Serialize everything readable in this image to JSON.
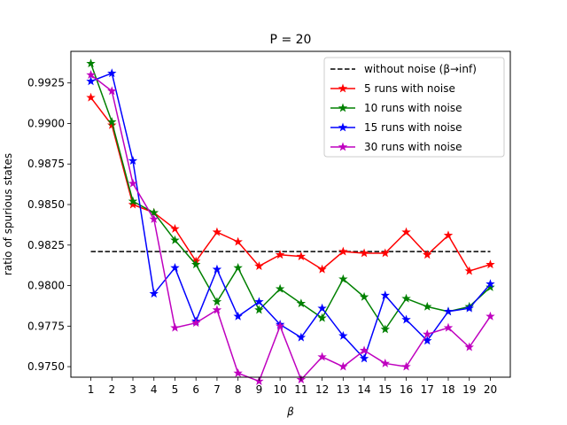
{
  "chart_data": {
    "type": "line",
    "title": "P = 20",
    "xlabel": "β",
    "ylabel": "ratio of spurious states",
    "x": [
      1,
      2,
      3,
      4,
      5,
      6,
      7,
      8,
      9,
      10,
      11,
      12,
      13,
      14,
      15,
      16,
      17,
      18,
      19,
      20
    ],
    "xticks": [
      "1",
      "2",
      "3",
      "4",
      "5",
      "6",
      "7",
      "8",
      "9",
      "10",
      "11",
      "12",
      "13",
      "14",
      "15",
      "16",
      "17",
      "18",
      "19",
      "20"
    ],
    "yticks": [
      "0.9750",
      "0.9775",
      "0.9800",
      "0.9825",
      "0.9850",
      "0.9875",
      "0.9900",
      "0.9925"
    ],
    "ylim": [
      0.97435,
      0.99445
    ],
    "xlim": [
      0.05,
      20.95
    ],
    "grid": false,
    "legend_position": "top-right",
    "reference_line": {
      "name": "without noise (β→inf)",
      "value": 0.9821,
      "color": "#000000",
      "style": "dashed"
    },
    "series": [
      {
        "name": "5 runs with noise",
        "color": "#ff0000",
        "values": [
          0.9916,
          0.9899,
          0.985,
          0.9845,
          0.9835,
          0.9815,
          0.9833,
          0.9827,
          0.9812,
          0.9819,
          0.9818,
          0.981,
          0.9821,
          0.982,
          0.982,
          0.9833,
          0.9819,
          0.9831,
          0.9809,
          0.9813
        ]
      },
      {
        "name": "10 runs with noise",
        "color": "#008000",
        "values": [
          0.9937,
          0.9901,
          0.9852,
          0.9845,
          0.9828,
          0.9813,
          0.979,
          0.9811,
          0.9785,
          0.9798,
          0.9789,
          0.978,
          0.9804,
          0.9793,
          0.9773,
          0.9792,
          0.9787,
          0.9784,
          0.9787,
          0.9799
        ]
      },
      {
        "name": "15 runs with noise",
        "color": "#0000ff",
        "values": [
          0.9926,
          0.9931,
          0.9877,
          0.9795,
          0.9811,
          0.9778,
          0.981,
          0.9781,
          0.979,
          0.9776,
          0.9768,
          0.9786,
          0.9769,
          0.9755,
          0.9794,
          0.9779,
          0.9766,
          0.9784,
          0.9786,
          0.9801
        ]
      },
      {
        "name": "30 runs with noise",
        "color": "#bf00bf",
        "values": [
          0.993,
          0.992,
          0.9863,
          0.9841,
          0.9774,
          0.9777,
          0.9785,
          0.9746,
          0.9741,
          0.9775,
          0.9742,
          0.9756,
          0.975,
          0.976,
          0.9752,
          0.975,
          0.977,
          0.9774,
          0.9762,
          0.9781
        ]
      }
    ]
  }
}
